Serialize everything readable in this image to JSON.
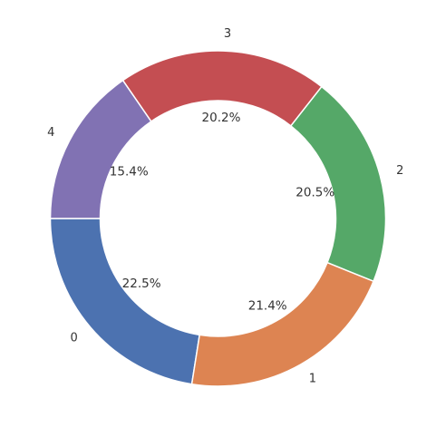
{
  "chart_data": {
    "type": "pie",
    "style": "donut",
    "title": "",
    "categories": [
      "0",
      "1",
      "2",
      "3",
      "4"
    ],
    "values": [
      22.5,
      21.4,
      20.5,
      20.2,
      15.4
    ],
    "percent_labels": [
      "22.5%",
      "21.4%",
      "20.5%",
      "20.2%",
      "15.4%"
    ],
    "colors": [
      "#4c72b0",
      "#dd8452",
      "#55a868",
      "#c44e52",
      "#8172b3"
    ],
    "start_angle_deg": 180,
    "direction": "counterclockwise",
    "legend": "none"
  }
}
